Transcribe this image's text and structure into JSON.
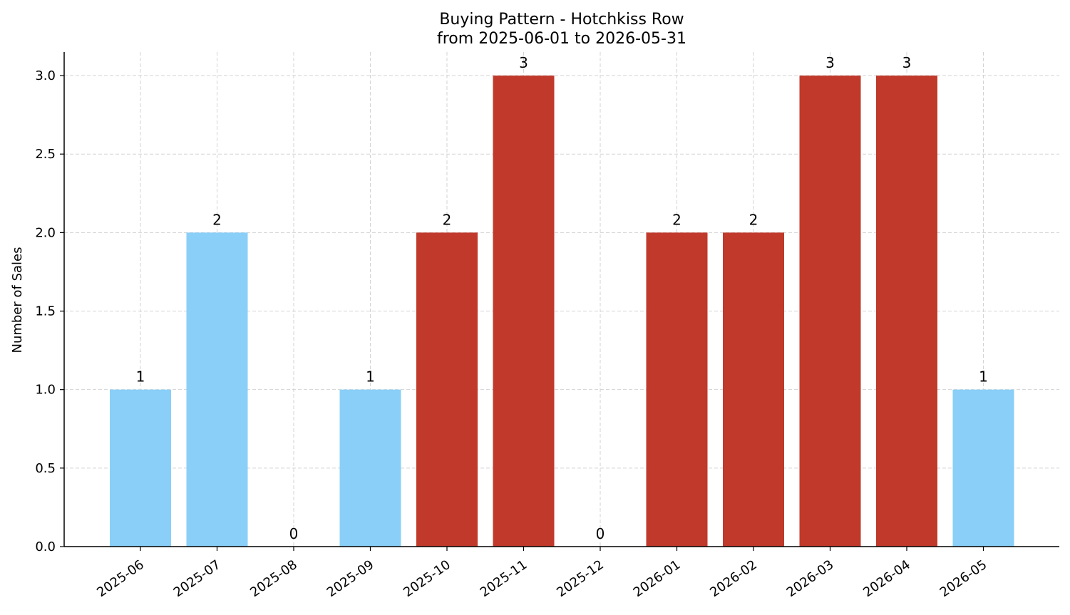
{
  "chart_data": {
    "type": "bar",
    "title": "Buying Pattern - Hotchkiss Row",
    "subtitle": "from 2025-06-01 to 2026-05-31",
    "xlabel": "",
    "ylabel": "Number of Sales",
    "ylim": [
      0,
      3.15
    ],
    "yticks": [
      "0.0",
      "0.5",
      "1.0",
      "1.5",
      "2.0",
      "2.5",
      "3.0"
    ],
    "grid": true,
    "categories": [
      "2025-06",
      "2025-07",
      "2025-08",
      "2025-09",
      "2025-10",
      "2025-11",
      "2025-12",
      "2026-01",
      "2026-02",
      "2026-03",
      "2026-04",
      "2026-05"
    ],
    "values": [
      1,
      2,
      0,
      1,
      2,
      3,
      0,
      2,
      2,
      3,
      3,
      1
    ],
    "colors": {
      "low": "#89cff8",
      "high": "#c0392b"
    },
    "bar_colors": [
      "low",
      "low",
      "low",
      "low",
      "high",
      "high",
      "low",
      "high",
      "high",
      "high",
      "high",
      "low"
    ]
  }
}
